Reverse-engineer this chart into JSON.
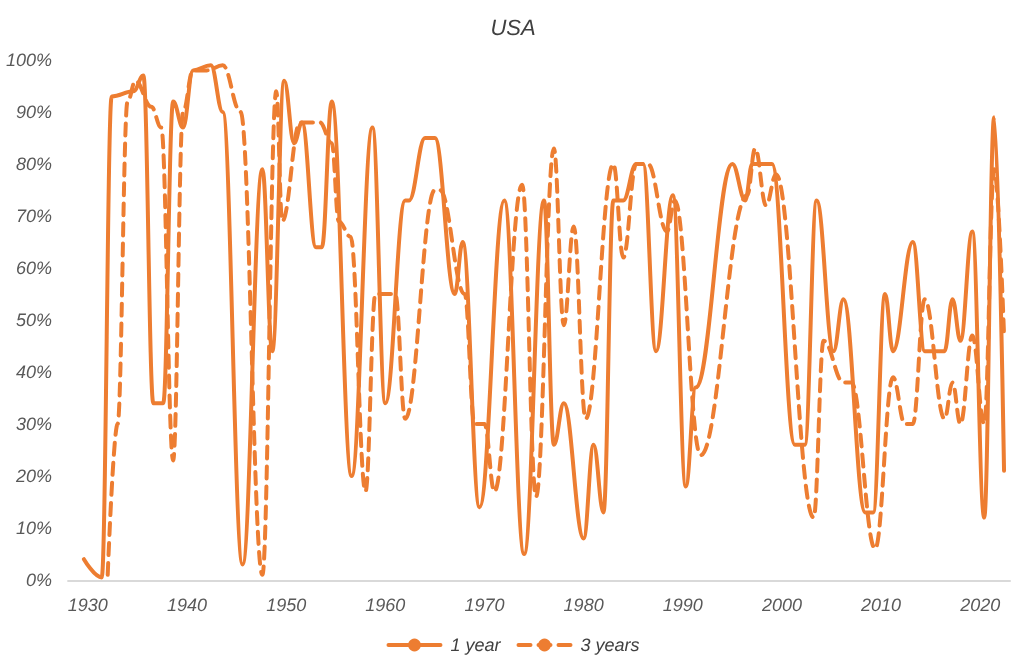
{
  "chart_data": {
    "type": "line",
    "title": "USA",
    "legend": "bottom",
    "grid": false,
    "marker": "none",
    "xlim": [
      1928,
      2023
    ],
    "xticks": [
      1930,
      1940,
      1950,
      1960,
      1970,
      1980,
      1990,
      2000,
      2010,
      2020
    ],
    "ylim": [
      0,
      100
    ],
    "yticks": [
      {
        "value": 0,
        "label": "0%"
      },
      {
        "value": 10,
        "label": "10%"
      },
      {
        "value": 20,
        "label": "20%"
      },
      {
        "value": 30,
        "label": "30%"
      },
      {
        "value": 40,
        "label": "40%"
      },
      {
        "value": 50,
        "label": "50%"
      },
      {
        "value": 60,
        "label": "60%"
      },
      {
        "value": 70,
        "label": "70%"
      },
      {
        "value": 80,
        "label": "80%"
      },
      {
        "value": 90,
        "label": "90%"
      },
      {
        "value": 100,
        "label": "100%"
      }
    ],
    "series": [
      {
        "name": "1 year",
        "color": "#ed7d31",
        "line_style": "solid",
        "x": [
          1929.6,
          1931.4,
          1932.4,
          1934.6,
          1935.6,
          1936.6,
          1937.6,
          1938.6,
          1939.6,
          1940.6,
          1942.4,
          1943.6,
          1945.6,
          1947.6,
          1948.6,
          1949.8,
          1950.8,
          1951.6,
          1953,
          1953.6,
          1954.6,
          1956.6,
          1958.7,
          1960,
          1962,
          1962.4,
          1964,
          1965,
          1967,
          1967.8,
          1969.5,
          1972,
          1974,
          1976,
          1977,
          1978,
          1980,
          1981,
          1982,
          1983,
          1984,
          1985.3,
          1986,
          1987.3,
          1989,
          1990.3,
          1991.3,
          1995,
          1996.3,
          1997,
          1999,
          2001.3,
          2002.3,
          2003.5,
          2005.2,
          2006.2,
          2008.4,
          2009.2,
          2010.4,
          2011.2,
          2013.2,
          2014.4,
          2016.4,
          2017.2,
          2018,
          2019.2,
          2020.4,
          2021.4,
          2022.4
        ],
        "values": [
          4,
          0.5,
          93,
          94,
          97,
          34,
          34,
          92,
          87,
          98,
          99,
          90,
          3,
          79,
          44,
          96,
          84,
          88,
          64,
          64,
          92,
          20,
          87,
          34,
          73,
          73,
          85,
          85,
          55,
          65,
          14,
          73,
          5,
          73,
          26,
          34,
          8,
          26,
          13,
          73,
          73,
          80,
          80,
          44,
          74,
          18,
          37,
          80,
          73,
          80,
          80,
          26,
          26,
          73,
          44,
          54,
          13,
          13,
          55,
          44,
          65,
          44,
          44,
          54,
          46,
          67,
          12,
          89,
          21
        ]
      },
      {
        "name": "3 years",
        "color": "#ed7d31",
        "line_style": "dashed",
        "x": [
          1932,
          1933,
          1934,
          1934.8,
          1936.4,
          1937.4,
          1938.6,
          1939.6,
          1940.6,
          1942,
          1943.6,
          1945.4,
          1947.6,
          1949,
          1949.6,
          1951.4,
          1953.4,
          1954.6,
          1955.3,
          1956.5,
          1958,
          1959,
          1961,
          1962,
          1965,
          1965.5,
          1968,
          1969,
          1970,
          1971,
          1973.8,
          1975.2,
          1977,
          1978,
          1979,
          1980.2,
          1983,
          1984,
          1985.3,
          1986.5,
          1988.4,
          1989.2,
          1991.8,
          1996.5,
          1997.3,
          1998.4,
          1999.4,
          2003.2,
          2004.2,
          2006.2,
          2007,
          2009.4,
          2011.2,
          2012.4,
          2013.2,
          2014.4,
          2016.4,
          2017.2,
          2018,
          2019.2,
          2020.4,
          2021.4,
          2022.4
        ],
        "values": [
          1,
          30,
          92,
          96,
          91,
          87,
          23,
          90,
          98,
          98,
          99,
          90,
          1,
          94,
          69,
          88,
          88,
          84,
          69,
          66,
          17,
          55,
          55,
          31,
          75,
          75,
          55,
          30,
          30,
          17,
          76,
          16,
          83,
          49,
          68,
          31,
          80,
          62,
          80,
          80,
          67,
          73,
          24,
          74,
          83,
          72,
          78,
          12,
          46,
          38,
          38,
          6,
          39,
          30,
          30,
          54,
          31,
          38,
          30,
          47,
          30,
          79,
          47
        ]
      }
    ]
  }
}
